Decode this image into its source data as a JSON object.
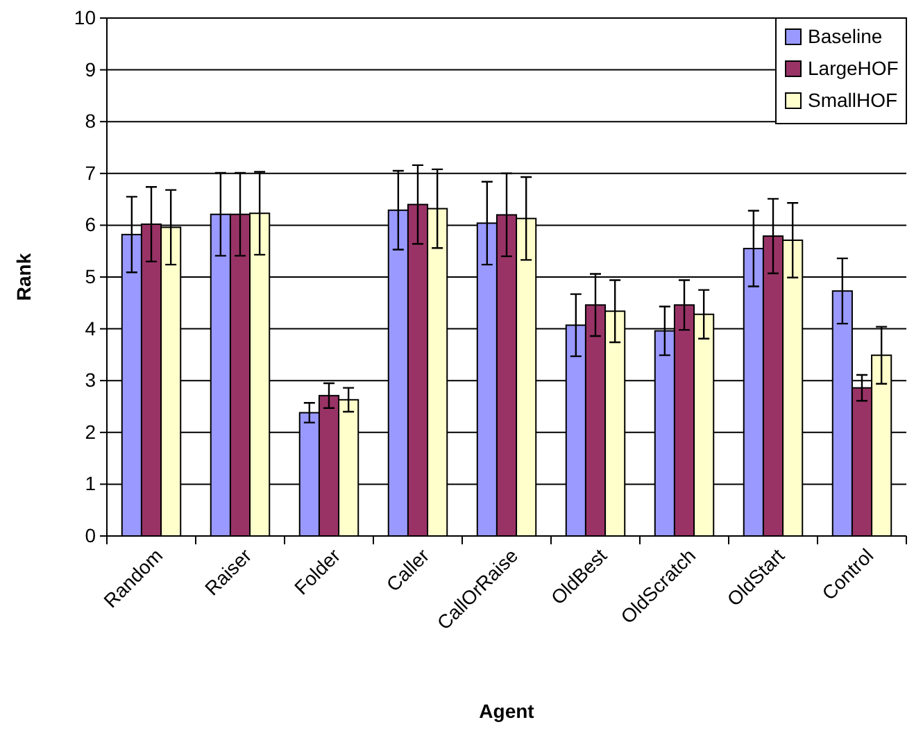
{
  "chart_data": {
    "type": "bar",
    "xlabel": "Agent",
    "ylabel": "Rank",
    "categories": [
      "Random",
      "Raiser",
      "Folder",
      "Caller",
      "CallOrRaise",
      "OldBest",
      "OldScratch",
      "OldStart",
      "Control"
    ],
    "series": [
      {
        "name": "Baseline",
        "color": "#9999ff",
        "values": [
          5.82,
          6.21,
          2.38,
          6.29,
          6.04,
          4.07,
          3.96,
          5.55,
          4.73
        ],
        "errors": [
          0.73,
          0.8,
          0.19,
          0.76,
          0.8,
          0.6,
          0.47,
          0.73,
          0.63
        ]
      },
      {
        "name": "LargeHOF",
        "color": "#993366",
        "values": [
          6.02,
          6.21,
          2.71,
          6.4,
          6.2,
          4.46,
          4.46,
          5.79,
          2.86
        ],
        "errors": [
          0.72,
          0.8,
          0.24,
          0.76,
          0.8,
          0.6,
          0.48,
          0.72,
          0.25
        ]
      },
      {
        "name": "SmallHOF",
        "color": "#ffffcc",
        "values": [
          5.96,
          6.23,
          2.63,
          6.32,
          6.13,
          4.34,
          4.28,
          5.71,
          3.49
        ],
        "errors": [
          0.72,
          0.8,
          0.23,
          0.76,
          0.8,
          0.6,
          0.47,
          0.72,
          0.55
        ]
      }
    ],
    "ylim": [
      0,
      10
    ],
    "yticks": [
      0,
      1,
      2,
      3,
      4,
      5,
      6,
      7,
      8,
      9,
      10
    ],
    "grid": "y",
    "legend": "top right"
  }
}
